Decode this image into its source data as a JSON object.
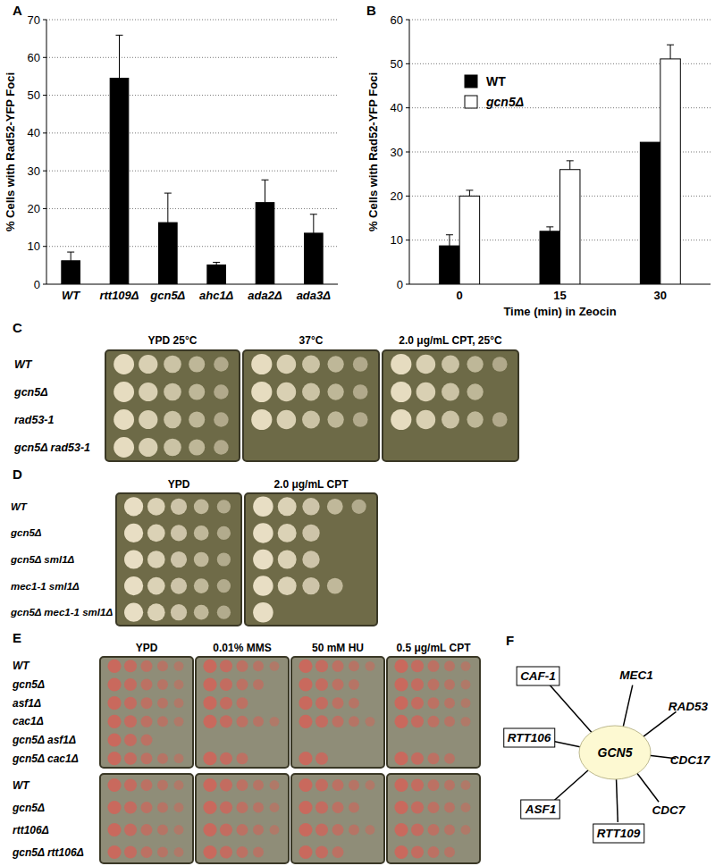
{
  "chart_data": [
    {
      "panel": "A",
      "type": "bar",
      "categories": [
        "WT",
        "rtt109Δ",
        "gcn5Δ",
        "ahc1Δ",
        "ada2Δ",
        "ada3Δ"
      ],
      "values": [
        6.2,
        54.5,
        16.3,
        5.1,
        21.6,
        13.5
      ],
      "errors": [
        2.3,
        11.4,
        7.8,
        0.7,
        6,
        5
      ],
      "color": "#000000",
      "y_label": "% Cells with Rad52-YFP Foci",
      "ylim": [
        0,
        70
      ],
      "yticks": [
        0,
        10,
        20,
        30,
        40,
        50,
        60,
        70
      ],
      "grid": true
    },
    {
      "panel": "B",
      "type": "bar",
      "categories": [
        "0",
        "15",
        "30"
      ],
      "x_label": "Time (min) in Zeocin",
      "y_label": "% Cells with Rad52-YFP Foci",
      "series": [
        {
          "name": "WT",
          "color": "#000000",
          "values": [
            8.7,
            12,
            32.2
          ],
          "errors": [
            2.5,
            1,
            null
          ]
        },
        {
          "name": "gcn5Δ",
          "color": "#ffffff",
          "values": [
            20,
            26,
            51.1
          ],
          "errors": [
            1.3,
            2,
            3.2
          ]
        }
      ],
      "ylim": [
        0,
        60
      ],
      "yticks": [
        0,
        10,
        20,
        30,
        40,
        50,
        60
      ],
      "grid": true,
      "legend": "upper-left"
    }
  ],
  "spot_assays": [
    {
      "panel": "C",
      "conditions": [
        "YPD  25°C",
        "37°C",
        "2.0 μg/mL CPT, 25°C"
      ],
      "blocks": [
        {
          "strains": [
            "WT",
            "gcn5Δ",
            "rad53-1",
            "gcn5Δ rad53-1"
          ],
          "growth": [
            [
              5,
              5,
              5
            ],
            [
              5,
              5,
              4
            ],
            [
              5,
              5,
              5
            ],
            [
              5,
              0,
              0
            ]
          ]
        }
      ]
    },
    {
      "panel": "D",
      "conditions": [
        "YPD",
        "2.0 μg/mL CPT"
      ],
      "blocks": [
        {
          "strains": [
            "WT",
            "gcn5Δ",
            "gcn5Δ sml1Δ",
            "mec1-1 sml1Δ",
            "gcn5Δ mec1-1 sml1Δ"
          ],
          "growth": [
            [
              5,
              5
            ],
            [
              5,
              3
            ],
            [
              5,
              3
            ],
            [
              5,
              4
            ],
            [
              5,
              1
            ]
          ]
        }
      ]
    },
    {
      "panel": "E",
      "conditions": [
        "YPD",
        "0.01% MMS",
        "50 mM HU",
        "0.5 μg/mL CPT"
      ],
      "blocks": [
        {
          "strains": [
            "WT",
            "gcn5Δ",
            "asf1Δ",
            "cac1Δ",
            "gcn5Δ asf1Δ",
            "gcn5Δ cac1Δ"
          ],
          "growth": [
            [
              5,
              5,
              5,
              5
            ],
            [
              5,
              4,
              4,
              5
            ],
            [
              5,
              3,
              4,
              5
            ],
            [
              5,
              5,
              5,
              5
            ],
            [
              3,
              0,
              0,
              0
            ],
            [
              5,
              3,
              2,
              4
            ]
          ]
        },
        {
          "strains": [
            "WT",
            "gcn5Δ",
            "rtt106Δ",
            "gcn5Δ rtt106Δ"
          ],
          "growth": [
            [
              5,
              5,
              5,
              5
            ],
            [
              5,
              5,
              4,
              5
            ],
            [
              5,
              5,
              5,
              5
            ],
            [
              5,
              4,
              3,
              4
            ]
          ]
        }
      ]
    }
  ],
  "network": {
    "panel": "F",
    "center": "GCN5",
    "nodes": [
      {
        "label": "CAF-1",
        "boxed": true
      },
      {
        "label": "MEC1",
        "boxed": false
      },
      {
        "label": "RAD53",
        "boxed": false
      },
      {
        "label": "CDC17",
        "boxed": false
      },
      {
        "label": "CDC7",
        "boxed": false
      },
      {
        "label": "RTT109",
        "boxed": true
      },
      {
        "label": "ASF1",
        "boxed": true
      },
      {
        "label": "RTT106",
        "boxed": true
      }
    ]
  }
}
